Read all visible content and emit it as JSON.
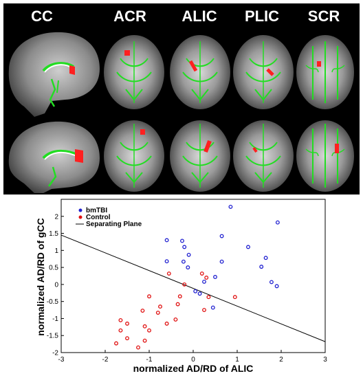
{
  "brain_panel": {
    "labels": [
      "CC",
      "ACR",
      "ALIC",
      "PLIC",
      "SCR"
    ],
    "colors": {
      "tract": "#22dd22",
      "significant": "#ff2020",
      "background": "#000000"
    }
  },
  "chart_data": {
    "type": "scatter",
    "title": "",
    "xlabel": "normalized AD/RD of ALIC",
    "ylabel": "normalized AD/RD of gCC",
    "xlim": [
      -3,
      3
    ],
    "ylim": [
      -2,
      2.5
    ],
    "xticks": [
      "-3",
      "-2",
      "-1",
      "0",
      "1",
      "2",
      "3"
    ],
    "yticks": [
      "-2",
      "-1.5",
      "-1",
      "-0.5",
      "0",
      "0.5",
      "1",
      "1.5",
      "2"
    ],
    "grid": false,
    "legend_position": "top-left",
    "series": [
      {
        "name": "bmTBI",
        "color": "#1f1fd0",
        "marker": "open-circle",
        "points": [
          [
            0.85,
            2.28
          ],
          [
            1.92,
            1.82
          ],
          [
            0.65,
            1.42
          ],
          [
            -0.6,
            1.3
          ],
          [
            -0.25,
            1.28
          ],
          [
            -0.2,
            1.1
          ],
          [
            1.25,
            1.1
          ],
          [
            -0.1,
            0.87
          ],
          [
            1.65,
            0.78
          ],
          [
            -0.6,
            0.68
          ],
          [
            -0.22,
            0.67
          ],
          [
            0.65,
            0.67
          ],
          [
            1.55,
            0.52
          ],
          [
            -0.12,
            0.5
          ],
          [
            0.5,
            0.22
          ],
          [
            0.25,
            0.08
          ],
          [
            1.78,
            0.07
          ],
          [
            1.9,
            -0.05
          ],
          [
            0.05,
            -0.2
          ],
          [
            0.15,
            -0.27
          ],
          [
            0.45,
            -0.68
          ]
        ]
      },
      {
        "name": "Control",
        "color": "#e01010",
        "marker": "open-circle",
        "points": [
          [
            -0.55,
            0.32
          ],
          [
            0.2,
            0.32
          ],
          [
            0.3,
            0.2
          ],
          [
            -0.2,
            0.0
          ],
          [
            -1.0,
            -0.35
          ],
          [
            -0.3,
            -0.35
          ],
          [
            0.35,
            -0.37
          ],
          [
            0.95,
            -0.37
          ],
          [
            -0.35,
            -0.58
          ],
          [
            -0.75,
            -0.65
          ],
          [
            0.25,
            -0.75
          ],
          [
            -1.15,
            -0.77
          ],
          [
            -0.8,
            -0.83
          ],
          [
            -1.65,
            -1.05
          ],
          [
            -0.4,
            -1.03
          ],
          [
            -0.6,
            -1.15
          ],
          [
            -1.5,
            -1.15
          ],
          [
            -1.1,
            -1.23
          ],
          [
            -1.65,
            -1.35
          ],
          [
            -1.0,
            -1.35
          ],
          [
            -1.5,
            -1.58
          ],
          [
            -1.75,
            -1.73
          ],
          [
            -1.1,
            -1.65
          ],
          [
            -1.25,
            -1.85
          ]
        ]
      }
    ],
    "separating_plane": {
      "name": "Separating Plane",
      "color": "#000000",
      "x": [
        -3,
        3
      ],
      "y": [
        1.45,
        -1.68
      ]
    }
  }
}
